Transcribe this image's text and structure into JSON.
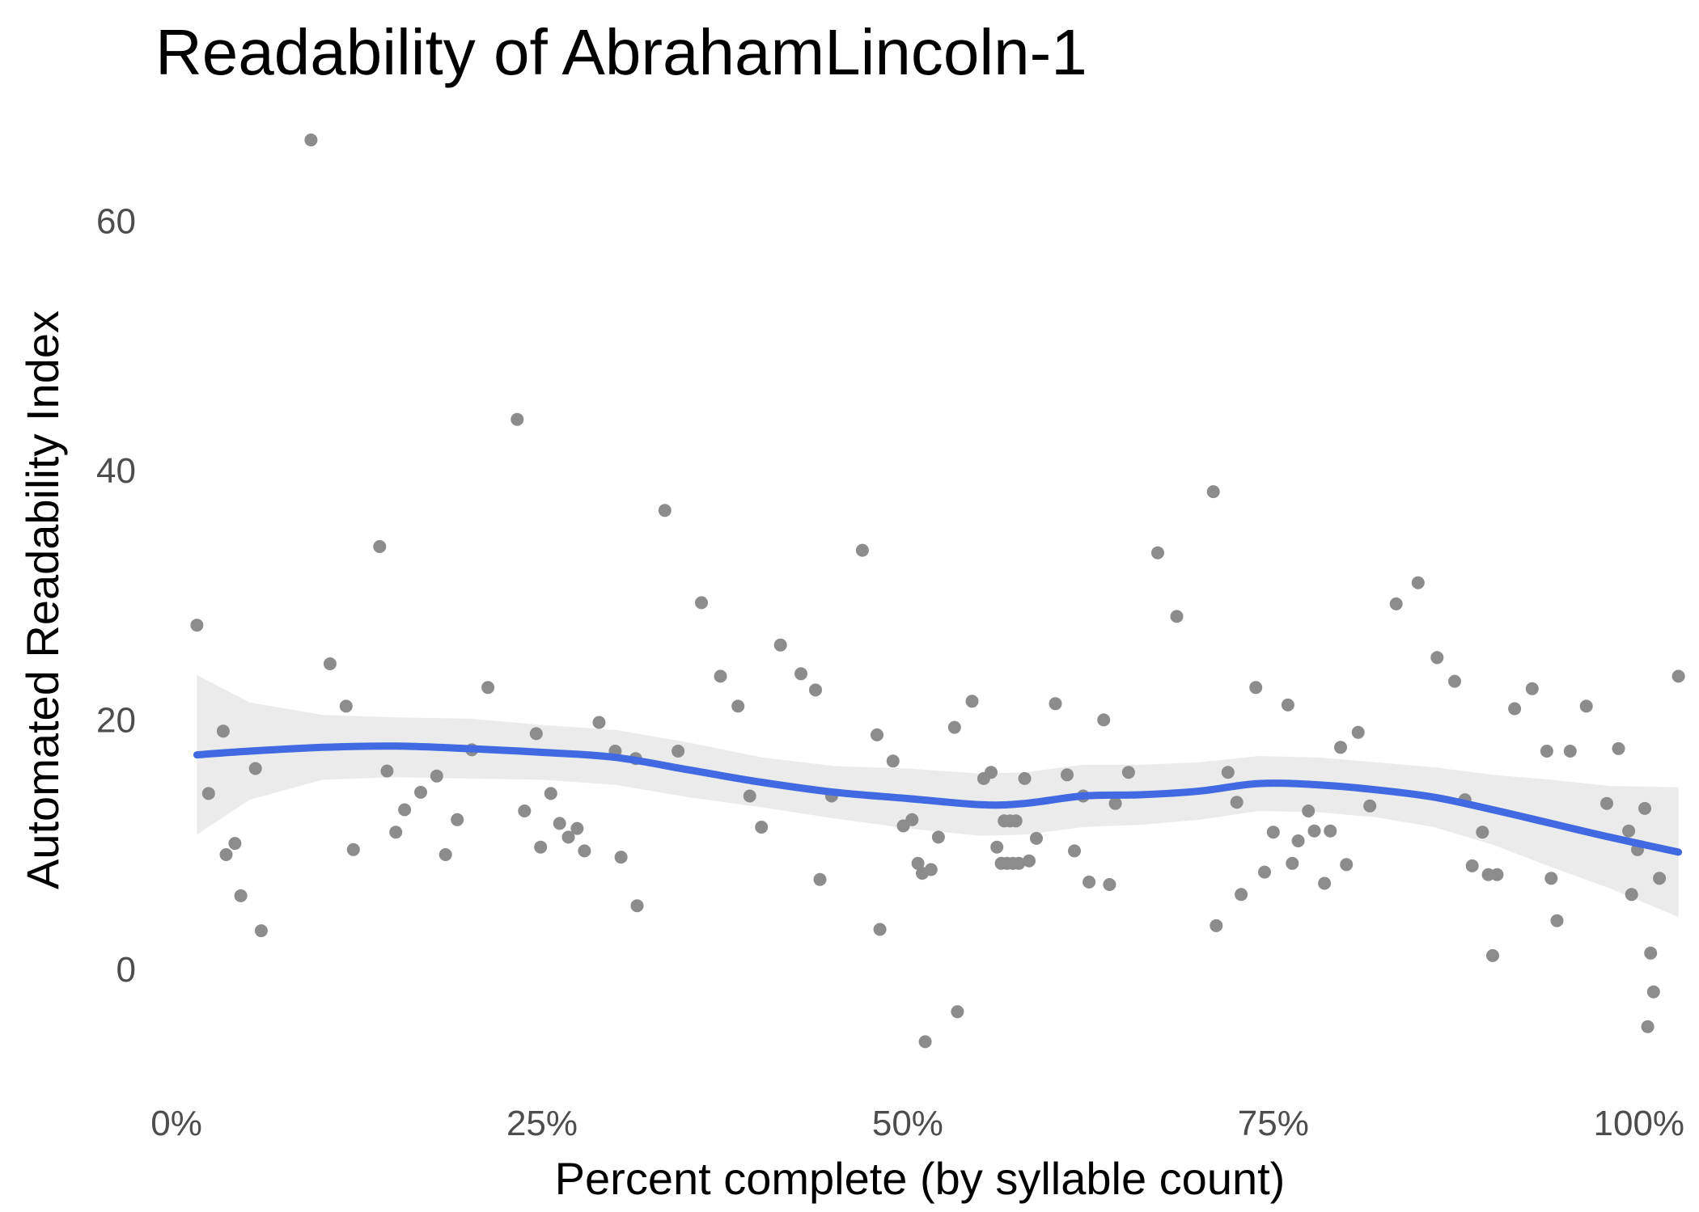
{
  "chart_data": {
    "type": "scatter",
    "title": "Readability of AbrahamLincoln-1",
    "xlabel": "Percent complete (by syllable count)",
    "ylabel": "Automated Readability Index",
    "xlim": [
      -0.01,
      1.03
    ],
    "ylim": [
      -8.5,
      68
    ],
    "x_ticks": [
      0,
      0.25,
      0.5,
      0.75,
      1.0
    ],
    "x_tick_labels": [
      "0%",
      "25%",
      "50%",
      "75%",
      "100%"
    ],
    "y_ticks": [
      0,
      20,
      40,
      60
    ],
    "y_tick_labels": [
      "0",
      "20",
      "40",
      "60"
    ],
    "grid": false,
    "colors": {
      "points": "#8c8c8c",
      "smooth": "#4169e1",
      "band": "#ebebeb"
    },
    "points": [
      {
        "x": 0.014,
        "y": 27.6
      },
      {
        "x": 0.022,
        "y": 14.1
      },
      {
        "x": 0.032,
        "y": 19.1
      },
      {
        "x": 0.034,
        "y": 9.2
      },
      {
        "x": 0.04,
        "y": 10.1
      },
      {
        "x": 0.044,
        "y": 5.9
      },
      {
        "x": 0.054,
        "y": 16.1
      },
      {
        "x": 0.058,
        "y": 3.1
      },
      {
        "x": 0.092,
        "y": 66.5
      },
      {
        "x": 0.105,
        "y": 24.5
      },
      {
        "x": 0.116,
        "y": 21.1
      },
      {
        "x": 0.121,
        "y": 9.6
      },
      {
        "x": 0.139,
        "y": 33.9
      },
      {
        "x": 0.144,
        "y": 15.9
      },
      {
        "x": 0.15,
        "y": 11.0
      },
      {
        "x": 0.156,
        "y": 12.8
      },
      {
        "x": 0.167,
        "y": 14.2
      },
      {
        "x": 0.178,
        "y": 15.5
      },
      {
        "x": 0.184,
        "y": 9.2
      },
      {
        "x": 0.192,
        "y": 12.0
      },
      {
        "x": 0.202,
        "y": 17.6
      },
      {
        "x": 0.213,
        "y": 22.6
      },
      {
        "x": 0.233,
        "y": 44.1
      },
      {
        "x": 0.238,
        "y": 12.7
      },
      {
        "x": 0.246,
        "y": 18.9
      },
      {
        "x": 0.249,
        "y": 9.8
      },
      {
        "x": 0.256,
        "y": 14.1
      },
      {
        "x": 0.262,
        "y": 11.7
      },
      {
        "x": 0.268,
        "y": 10.6
      },
      {
        "x": 0.274,
        "y": 11.3
      },
      {
        "x": 0.279,
        "y": 9.5
      },
      {
        "x": 0.289,
        "y": 19.8
      },
      {
        "x": 0.3,
        "y": 17.5
      },
      {
        "x": 0.304,
        "y": 9.0
      },
      {
        "x": 0.314,
        "y": 16.9
      },
      {
        "x": 0.315,
        "y": 5.1
      },
      {
        "x": 0.334,
        "y": 36.8
      },
      {
        "x": 0.343,
        "y": 17.5
      },
      {
        "x": 0.359,
        "y": 29.4
      },
      {
        "x": 0.372,
        "y": 23.5
      },
      {
        "x": 0.384,
        "y": 21.1
      },
      {
        "x": 0.392,
        "y": 13.9
      },
      {
        "x": 0.4,
        "y": 11.4
      },
      {
        "x": 0.413,
        "y": 26.0
      },
      {
        "x": 0.427,
        "y": 23.7
      },
      {
        "x": 0.437,
        "y": 22.4
      },
      {
        "x": 0.44,
        "y": 7.2
      },
      {
        "x": 0.448,
        "y": 13.9
      },
      {
        "x": 0.469,
        "y": 33.6
      },
      {
        "x": 0.479,
        "y": 18.8
      },
      {
        "x": 0.481,
        "y": 3.2
      },
      {
        "x": 0.49,
        "y": 16.7
      },
      {
        "x": 0.497,
        "y": 11.5
      },
      {
        "x": 0.503,
        "y": 12.0
      },
      {
        "x": 0.507,
        "y": 8.5
      },
      {
        "x": 0.51,
        "y": 7.7
      },
      {
        "x": 0.512,
        "y": -5.8
      },
      {
        "x": 0.516,
        "y": 8.0
      },
      {
        "x": 0.521,
        "y": 10.6
      },
      {
        "x": 0.532,
        "y": 19.4
      },
      {
        "x": 0.534,
        "y": -3.4
      },
      {
        "x": 0.544,
        "y": 21.5
      },
      {
        "x": 0.552,
        "y": 15.3
      },
      {
        "x": 0.557,
        "y": 15.8
      },
      {
        "x": 0.561,
        "y": 9.8
      },
      {
        "x": 0.564,
        "y": 8.5
      },
      {
        "x": 0.566,
        "y": 11.9
      },
      {
        "x": 0.568,
        "y": 8.5
      },
      {
        "x": 0.57,
        "y": 11.9
      },
      {
        "x": 0.572,
        "y": 8.5
      },
      {
        "x": 0.574,
        "y": 11.9
      },
      {
        "x": 0.576,
        "y": 8.5
      },
      {
        "x": 0.58,
        "y": 15.3
      },
      {
        "x": 0.583,
        "y": 8.7
      },
      {
        "x": 0.588,
        "y": 10.5
      },
      {
        "x": 0.601,
        "y": 21.3
      },
      {
        "x": 0.609,
        "y": 15.6
      },
      {
        "x": 0.614,
        "y": 9.5
      },
      {
        "x": 0.62,
        "y": 13.9
      },
      {
        "x": 0.624,
        "y": 7.0
      },
      {
        "x": 0.634,
        "y": 20.0
      },
      {
        "x": 0.638,
        "y": 6.8
      },
      {
        "x": 0.642,
        "y": 13.3
      },
      {
        "x": 0.651,
        "y": 15.8
      },
      {
        "x": 0.671,
        "y": 33.4
      },
      {
        "x": 0.684,
        "y": 28.3
      },
      {
        "x": 0.709,
        "y": 38.3
      },
      {
        "x": 0.711,
        "y": 3.5
      },
      {
        "x": 0.719,
        "y": 15.8
      },
      {
        "x": 0.725,
        "y": 13.4
      },
      {
        "x": 0.728,
        "y": 6.0
      },
      {
        "x": 0.738,
        "y": 22.6
      },
      {
        "x": 0.744,
        "y": 7.8
      },
      {
        "x": 0.75,
        "y": 11.0
      },
      {
        "x": 0.76,
        "y": 21.2
      },
      {
        "x": 0.763,
        "y": 8.5
      },
      {
        "x": 0.767,
        "y": 10.3
      },
      {
        "x": 0.774,
        "y": 12.7
      },
      {
        "x": 0.778,
        "y": 11.1
      },
      {
        "x": 0.785,
        "y": 6.9
      },
      {
        "x": 0.789,
        "y": 11.1
      },
      {
        "x": 0.796,
        "y": 17.8
      },
      {
        "x": 0.8,
        "y": 8.4
      },
      {
        "x": 0.808,
        "y": 19.0
      },
      {
        "x": 0.816,
        "y": 13.1
      },
      {
        "x": 0.834,
        "y": 29.3
      },
      {
        "x": 0.849,
        "y": 31.0
      },
      {
        "x": 0.862,
        "y": 25.0
      },
      {
        "x": 0.874,
        "y": 23.1
      },
      {
        "x": 0.881,
        "y": 13.6
      },
      {
        "x": 0.886,
        "y": 8.3
      },
      {
        "x": 0.893,
        "y": 11.0
      },
      {
        "x": 0.897,
        "y": 7.6
      },
      {
        "x": 0.9,
        "y": 1.1
      },
      {
        "x": 0.903,
        "y": 7.6
      },
      {
        "x": 0.915,
        "y": 20.9
      },
      {
        "x": 0.927,
        "y": 22.5
      },
      {
        "x": 0.937,
        "y": 17.5
      },
      {
        "x": 0.94,
        "y": 7.3
      },
      {
        "x": 0.944,
        "y": 3.9
      },
      {
        "x": 0.953,
        "y": 17.5
      },
      {
        "x": 0.964,
        "y": 21.1
      },
      {
        "x": 0.978,
        "y": 13.3
      },
      {
        "x": 0.986,
        "y": 17.7
      },
      {
        "x": 0.993,
        "y": 11.1
      },
      {
        "x": 0.995,
        "y": 6.0
      },
      {
        "x": 0.999,
        "y": 9.6
      },
      {
        "x": 1.004,
        "y": 12.9
      },
      {
        "x": 1.006,
        "y": -4.6
      },
      {
        "x": 1.008,
        "y": 1.3
      },
      {
        "x": 1.01,
        "y": -1.8
      },
      {
        "x": 1.014,
        "y": 7.3
      },
      {
        "x": 1.027,
        "y": 23.5
      }
    ],
    "smooth": {
      "x": [
        0.014,
        0.05,
        0.1,
        0.15,
        0.2,
        0.25,
        0.3,
        0.35,
        0.4,
        0.45,
        0.5,
        0.55,
        0.58,
        0.62,
        0.66,
        0.7,
        0.74,
        0.78,
        0.82,
        0.86,
        0.9,
        0.94,
        0.98,
        1.027
      ],
      "y": [
        17.2,
        17.5,
        17.8,
        17.9,
        17.7,
        17.4,
        17.0,
        16.0,
        15.0,
        14.2,
        13.7,
        13.2,
        13.3,
        13.9,
        14.0,
        14.3,
        14.9,
        14.8,
        14.4,
        13.8,
        12.8,
        11.7,
        10.6,
        9.4
      ],
      "lower": [
        10.8,
        13.6,
        15.2,
        15.4,
        15.3,
        15.2,
        14.8,
        13.8,
        13.0,
        12.1,
        11.3,
        10.7,
        10.8,
        11.4,
        11.6,
        12.0,
        12.7,
        12.6,
        12.2,
        11.4,
        10.0,
        8.2,
        6.5,
        4.2
      ],
      "upper": [
        23.6,
        21.4,
        20.4,
        20.2,
        20.1,
        19.6,
        19.2,
        18.2,
        17.0,
        16.3,
        16.1,
        15.7,
        15.8,
        16.4,
        16.4,
        16.6,
        17.1,
        17.0,
        16.6,
        16.2,
        15.6,
        15.2,
        14.7,
        14.6
      ]
    }
  }
}
